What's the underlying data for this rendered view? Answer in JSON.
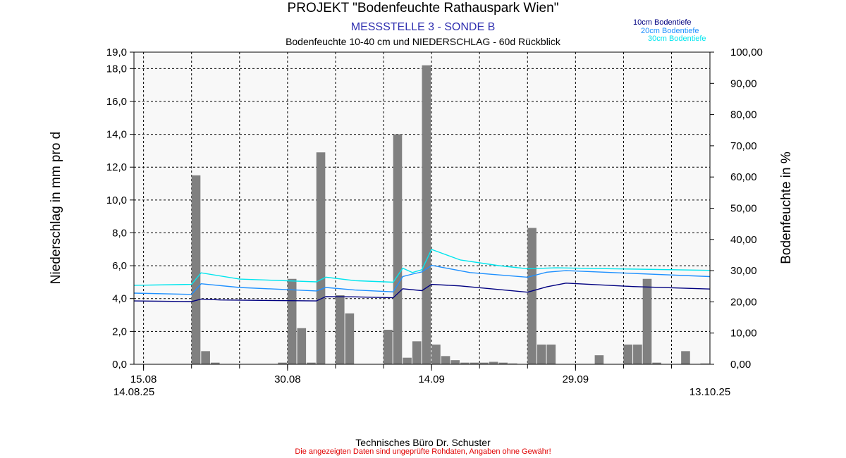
{
  "header": {
    "title": "PROJEKT \"Bodenfeuchte Rathauspark Wien\"",
    "subtitle": "MESSSTELLE 3 - SONDE B",
    "subtitle2": "Bodenfeuchte 10-40 cm und NIEDERSCHLAG - 60d Rückblick"
  },
  "footer": {
    "line1": "Technisches Büro Dr. Schuster",
    "line2": "Die angezeigten Daten sind ungeprüfte Rohdaten, Angaben ohne Gewähr!"
  },
  "colors": {
    "bar": "#808080",
    "background": "#f8f8f8",
    "s10cm": "#000080",
    "s20cm": "#1e90ff",
    "s30cm": "#00e5ee"
  },
  "chart_data": {
    "type": "bar+line",
    "x_start": "2025-08-14",
    "x_end": "2025-10-13",
    "xlabel": "",
    "x_ticks": [
      {
        "date": "2025-08-15",
        "label": "15.08"
      },
      {
        "date": "2025-08-30",
        "label": "30.08"
      },
      {
        "date": "2025-09-14",
        "label": "14.09"
      },
      {
        "date": "2025-09-29",
        "label": "29.09"
      }
    ],
    "x_start_label": "14.08.25",
    "x_end_label": "13.10.25",
    "y_left": {
      "label": "Niederschlag in mm pro d",
      "range": [
        0,
        19
      ],
      "ticks": [
        "0,0",
        "2,0",
        "4,0",
        "6,0",
        "8,0",
        "10,0",
        "12,0",
        "14,0",
        "16,0",
        "18,0",
        "19,0"
      ]
    },
    "y_right": {
      "label": "Bodenfeuchte in %",
      "range": [
        0,
        100
      ],
      "ticks": [
        "0,00",
        "10,00",
        "20,00",
        "30,00",
        "40,00",
        "50,00",
        "60,00",
        "70,00",
        "80,00",
        "90,00",
        "100,00"
      ]
    },
    "grid": true,
    "legend_position": "top-right",
    "precipitation": [
      {
        "date": "2025-08-20",
        "mm": 11.5
      },
      {
        "date": "2025-08-21",
        "mm": 0.8
      },
      {
        "date": "2025-08-22",
        "mm": 0.1
      },
      {
        "date": "2025-08-29",
        "mm": 0.1
      },
      {
        "date": "2025-08-30",
        "mm": 5.2
      },
      {
        "date": "2025-08-31",
        "mm": 2.2
      },
      {
        "date": "2025-09-01",
        "mm": 0.1
      },
      {
        "date": "2025-09-02",
        "mm": 12.9
      },
      {
        "date": "2025-09-04",
        "mm": 4.2
      },
      {
        "date": "2025-09-05",
        "mm": 3.1
      },
      {
        "date": "2025-09-09",
        "mm": 2.1
      },
      {
        "date": "2025-09-10",
        "mm": 14.0
      },
      {
        "date": "2025-09-11",
        "mm": 0.4
      },
      {
        "date": "2025-09-12",
        "mm": 1.4
      },
      {
        "date": "2025-09-13",
        "mm": 18.2
      },
      {
        "date": "2025-09-14",
        "mm": 1.2
      },
      {
        "date": "2025-09-15",
        "mm": 0.5
      },
      {
        "date": "2025-09-16",
        "mm": 0.25
      },
      {
        "date": "2025-09-17",
        "mm": 0.1
      },
      {
        "date": "2025-09-18",
        "mm": 0.1
      },
      {
        "date": "2025-09-19",
        "mm": 0.1
      },
      {
        "date": "2025-09-20",
        "mm": 0.15
      },
      {
        "date": "2025-09-21",
        "mm": 0.1
      },
      {
        "date": "2025-09-22",
        "mm": 0.05
      },
      {
        "date": "2025-09-24",
        "mm": 8.3
      },
      {
        "date": "2025-09-25",
        "mm": 1.2
      },
      {
        "date": "2025-09-26",
        "mm": 1.2
      },
      {
        "date": "2025-10-01",
        "mm": 0.55
      },
      {
        "date": "2025-10-04",
        "mm": 1.2
      },
      {
        "date": "2025-10-05",
        "mm": 1.2
      },
      {
        "date": "2025-10-06",
        "mm": 5.2
      },
      {
        "date": "2025-10-07",
        "mm": 0.1
      },
      {
        "date": "2025-10-10",
        "mm": 0.8
      },
      {
        "date": "2025-10-12",
        "mm": 0.05
      }
    ],
    "series": [
      {
        "name": "10cm Bodentiefe",
        "points": [
          [
            "2025-08-14",
            20.3
          ],
          [
            "2025-08-20",
            20.1
          ],
          [
            "2025-08-21",
            20.9
          ],
          [
            "2025-08-23",
            20.6
          ],
          [
            "2025-09-02",
            20.3
          ],
          [
            "2025-09-03",
            21.7
          ],
          [
            "2025-09-06",
            21.6
          ],
          [
            "2025-09-10",
            21.3
          ],
          [
            "2025-09-11",
            24.2
          ],
          [
            "2025-09-13",
            23.6
          ],
          [
            "2025-09-14",
            25.6
          ],
          [
            "2025-09-17",
            25.1
          ],
          [
            "2025-09-24",
            23.1
          ],
          [
            "2025-09-26",
            24.8
          ],
          [
            "2025-09-28",
            26.0
          ],
          [
            "2025-10-05",
            24.9
          ],
          [
            "2025-10-13",
            24.1
          ]
        ]
      },
      {
        "name": "20cm Bodentiefe",
        "points": [
          [
            "2025-08-14",
            22.8
          ],
          [
            "2025-08-20",
            22.4
          ],
          [
            "2025-08-21",
            25.8
          ],
          [
            "2025-08-25",
            24.6
          ],
          [
            "2025-09-02",
            23.5
          ],
          [
            "2025-09-03",
            24.6
          ],
          [
            "2025-09-06",
            23.8
          ],
          [
            "2025-09-10",
            23.2
          ],
          [
            "2025-09-11",
            28.1
          ],
          [
            "2025-09-12",
            28.9
          ],
          [
            "2025-09-13",
            29.6
          ],
          [
            "2025-09-14",
            31.7
          ],
          [
            "2025-09-18",
            29.4
          ],
          [
            "2025-09-24",
            27.9
          ],
          [
            "2025-09-26",
            29.5
          ],
          [
            "2025-09-28",
            30.0
          ],
          [
            "2025-10-13",
            28.1
          ]
        ]
      },
      {
        "name": "30cm Bodentiefe",
        "points": [
          [
            "2025-08-14",
            25.3
          ],
          [
            "2025-08-20",
            25.6
          ],
          [
            "2025-08-21",
            29.3
          ],
          [
            "2025-08-25",
            27.3
          ],
          [
            "2025-09-02",
            26.4
          ],
          [
            "2025-09-03",
            27.9
          ],
          [
            "2025-09-06",
            26.8
          ],
          [
            "2025-09-10",
            26.3
          ],
          [
            "2025-09-11",
            30.8
          ],
          [
            "2025-09-12",
            29.4
          ],
          [
            "2025-09-13",
            30.3
          ],
          [
            "2025-09-14",
            36.8
          ],
          [
            "2025-09-17",
            33.4
          ],
          [
            "2025-09-21",
            31.6
          ],
          [
            "2025-09-24",
            30.6
          ],
          [
            "2025-09-27",
            30.9
          ],
          [
            "2025-10-13",
            30.1
          ]
        ]
      }
    ]
  }
}
